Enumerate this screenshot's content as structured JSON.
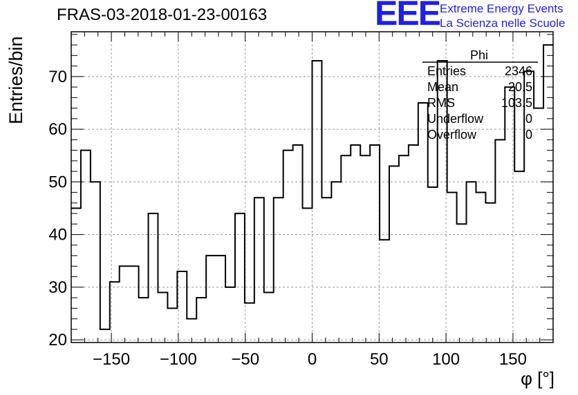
{
  "title": "FRAS-03-2018-01-23-00163",
  "logo": {
    "mark": "EEE",
    "line1": "Extreme Energy Events",
    "line2": "La Scienza nelle Scuole",
    "color": "#1f1fe6"
  },
  "stats": {
    "title": "Phi",
    "rows": [
      {
        "label": "Entries",
        "value": "2346"
      },
      {
        "label": "Mean",
        "value": "20.5"
      },
      {
        "label": "RMS",
        "value": "103.5"
      },
      {
        "label": "Underflow",
        "value": "0"
      },
      {
        "label": "Overflow",
        "value": "0"
      }
    ]
  },
  "chart_data": {
    "type": "bar",
    "histogram": true,
    "title": "FRAS-03-2018-01-23-00163",
    "xlabel": "φ [°]",
    "ylabel": "Entries/bin",
    "xlim": [
      -180,
      180
    ],
    "ylim": [
      19.5,
      78.5
    ],
    "bin_width": 7.2,
    "xticks": [
      -150,
      -100,
      -50,
      0,
      50,
      100,
      150
    ],
    "xtick_labels": [
      "−150",
      "−100",
      "−50",
      "0",
      "50",
      "100",
      "150"
    ],
    "yticks": [
      20,
      30,
      40,
      50,
      60,
      70
    ],
    "grid": true,
    "legend": "top-right",
    "values": [
      45,
      56,
      50,
      22,
      31,
      34,
      34,
      28,
      44,
      29,
      26,
      33,
      24,
      28,
      36,
      36,
      30,
      44,
      27,
      47,
      29,
      47,
      56,
      57,
      45,
      73,
      47,
      50,
      55,
      57,
      55,
      57,
      39,
      53,
      55,
      57,
      65,
      49,
      73,
      48,
      42,
      50,
      48,
      46,
      58,
      68,
      52,
      71,
      64,
      76
    ]
  }
}
